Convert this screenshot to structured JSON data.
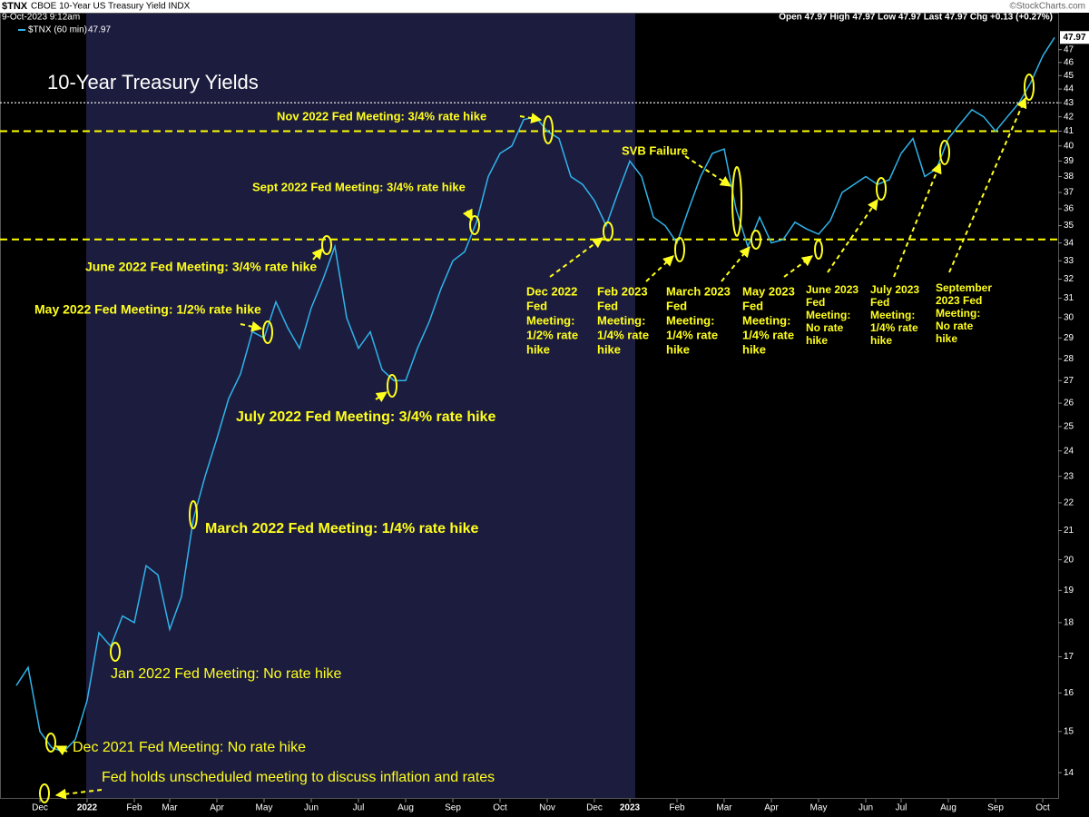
{
  "chart_data": {
    "type": "line",
    "symbol": "$TNX",
    "instrument": "CBOE 10-Year US Treasury Yield INDX",
    "timestamp": "9-Oct-2023 9:12am",
    "quote": "Open 47.97  High 47.97  Low 47.97  Last 47.97  Chg +0.13 (+0.27%)",
    "credit": "©StockCharts.com",
    "title": "10-Year Treasury Yields",
    "log_scale": true,
    "grid": false,
    "ylim": [
      13.4,
      50
    ],
    "yticks": [
      14,
      15,
      16,
      17,
      18,
      19,
      20,
      21,
      22,
      23,
      24,
      25,
      26,
      27,
      28,
      29,
      30,
      31,
      32,
      33,
      34,
      35,
      36,
      37,
      38,
      39,
      40,
      41,
      42,
      43,
      44,
      45,
      46,
      47
    ],
    "categories": [
      null,
      null,
      "Dec",
      null,
      null,
      null,
      "2022",
      null,
      null,
      null,
      "Feb",
      null,
      null,
      "Mar",
      null,
      null,
      null,
      "Apr",
      null,
      null,
      null,
      "May",
      null,
      null,
      null,
      "Jun",
      null,
      null,
      null,
      "Jul",
      null,
      null,
      null,
      "Aug",
      null,
      null,
      null,
      "Sep",
      null,
      null,
      null,
      "Oct",
      null,
      null,
      null,
      "Nov",
      null,
      null,
      null,
      "Dec",
      null,
      null,
      "2023",
      null,
      null,
      null,
      "Feb",
      null,
      null,
      null,
      "Mar",
      null,
      null,
      null,
      "Apr",
      null,
      null,
      null,
      "May",
      null,
      null,
      null,
      "Jun",
      null,
      null,
      "Jul",
      null,
      null,
      null,
      "Aug",
      null,
      null,
      null,
      "Sep",
      null,
      null,
      null,
      "Oct",
      null
    ],
    "series": [
      {
        "name": "$TNX (60 min)",
        "color": "#2fb4ea",
        "values": [
          16.2,
          16.7,
          15.0,
          14.6,
          14.5,
          14.8,
          15.8,
          17.7,
          17.3,
          18.2,
          18.0,
          19.8,
          19.5,
          17.8,
          18.8,
          21.4,
          23.0,
          24.5,
          26.2,
          27.3,
          29.3,
          29.0,
          30.8,
          29.5,
          28.5,
          30.5,
          32.0,
          33.8,
          30.0,
          28.5,
          29.3,
          27.5,
          27.0,
          27.0,
          28.5,
          29.8,
          31.5,
          33.0,
          33.5,
          35.2,
          38.0,
          39.5,
          40.0,
          41.8,
          42.0,
          41.0,
          40.5,
          38.0,
          37.5,
          36.5,
          35.0,
          37.0,
          39.0,
          38.0,
          35.5,
          35.0,
          34.0,
          36.0,
          38.0,
          39.5,
          39.8,
          36.0,
          33.8,
          35.5,
          34.0,
          34.2,
          35.2,
          34.8,
          34.5,
          35.3,
          37.0,
          37.5,
          38.0,
          37.5,
          37.8,
          39.5,
          40.5,
          38.0,
          38.5,
          40.5,
          41.5,
          42.5,
          42.0,
          41.0,
          42.0,
          43.0,
          44.5,
          46.5,
          47.97
        ]
      }
    ],
    "reference_lines": [
      {
        "value": 43,
        "color": "#ffffff",
        "style": "dotted"
      },
      {
        "value": 41,
        "color": "#ffff00",
        "style": "dashed"
      },
      {
        "value": 34.2,
        "color": "#ffff00",
        "style": "dashed"
      }
    ],
    "annotations": [
      "Nov 2022 Fed Meeting: 3/4% rate hike",
      "SVB Failure",
      "Sept 2022 Fed Meeting: 3/4% rate hike",
      "June 2022 Fed Meeting: 3/4% rate hike",
      "May 2022 Fed Meeting: 1/2% rate hike",
      "July 2022 Fed Meeting: 3/4% rate hike",
      "March 2022 Fed Meeting: 1/4% rate hike",
      "Jan 2022 Fed Meeting: No rate hike",
      "Dec 2021 Fed Meeting: No rate hike",
      "Fed holds unscheduled meeting to discuss inflation and rates"
    ],
    "stacked_annotations": [
      [
        "Dec 2022",
        "Fed",
        "Meeting:",
        "1/2% rate",
        "hike"
      ],
      [
        "Feb 2023",
        "Fed",
        "Meeting:",
        "1/4% rate",
        "hike"
      ],
      [
        "March 2023",
        "Fed",
        "Meeting:",
        "1/4% rate",
        "hike"
      ],
      [
        "May 2023",
        "Fed",
        "Meeting:",
        "1/4% rate",
        "hike"
      ],
      [
        "June 2023",
        "Fed",
        "Meeting:",
        "No rate",
        "hike"
      ],
      [
        "July 2023",
        "Fed",
        "Meeting:",
        "1/4% rate",
        "hike"
      ],
      [
        "September",
        "2023 Fed",
        "Meeting:",
        "No rate",
        "hike"
      ]
    ]
  }
}
